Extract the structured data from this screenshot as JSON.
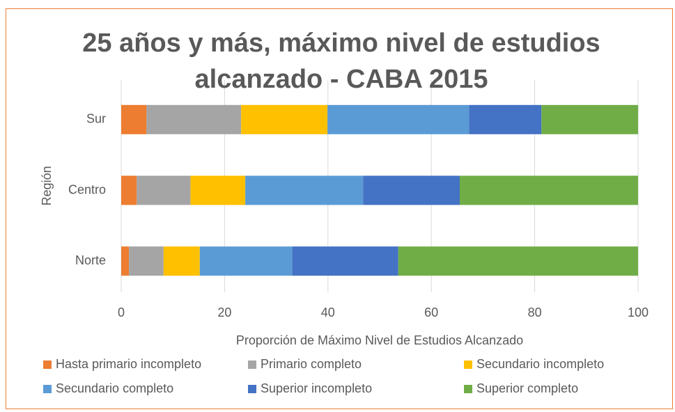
{
  "chart_data": {
    "type": "stacked_barh",
    "title": "25 años y más, máximo nivel de estudios alcanzado - CABA 2015",
    "x_label": "Proporción de Máximo Nivel de Estudios Alcanzado",
    "y_label": "Región",
    "categories": [
      "Sur",
      "Centro",
      "Norte"
    ],
    "series": [
      {
        "name": "Hasta primario incompleto",
        "color": "#ed7d31",
        "values": [
          4.9,
          3.0,
          1.5
        ]
      },
      {
        "name": "Primario completo",
        "color": "#a5a5a5",
        "values": [
          18.3,
          10.4,
          6.7
        ]
      },
      {
        "name": "Secundario incompleto",
        "color": "#ffc000",
        "values": [
          16.7,
          10.6,
          7.0
        ]
      },
      {
        "name": "Secundario completo",
        "color": "#5b9bd5",
        "values": [
          27.4,
          22.8,
          17.9
        ]
      },
      {
        "name": "Superior incompleto",
        "color": "#4472c4",
        "values": [
          14.0,
          18.7,
          20.5
        ]
      },
      {
        "name": "Superior completo",
        "color": "#70ad47",
        "values": [
          18.7,
          34.5,
          46.4
        ]
      }
    ],
    "xlim": [
      0,
      100
    ],
    "xticks": [
      0,
      20,
      40,
      60,
      80,
      100
    ],
    "grid": true,
    "legend": "bottom"
  }
}
